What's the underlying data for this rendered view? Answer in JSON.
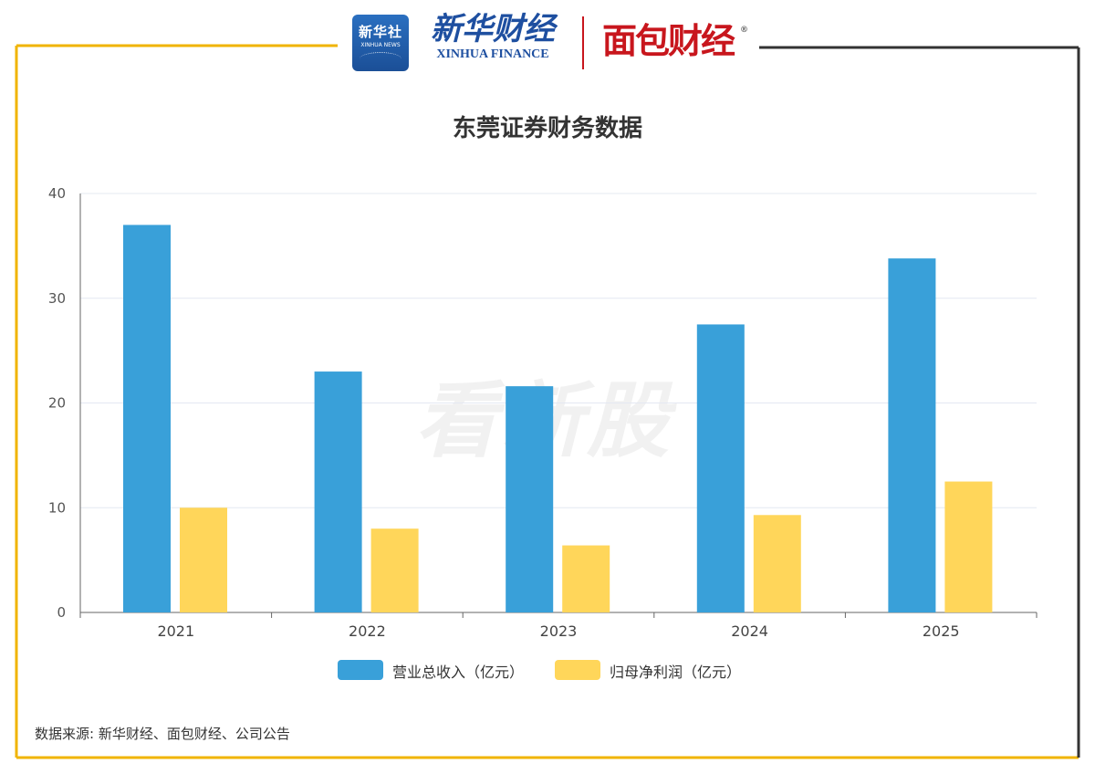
{
  "header": {
    "logo_xinhua_she_cn": "新华社",
    "logo_xinhua_she_en": "XINHUA NEWS",
    "logo_xinhua_finance_cn": "新华财经",
    "logo_xinhua_finance_en": "XINHUA FINANCE",
    "logo_mianbao": "面包财经",
    "registered_mark": "®"
  },
  "watermark": "看新股",
  "source": "数据来源: 新华财经、面包财经、公司公告",
  "colors": {
    "frame_gold": "#f0b400",
    "frame_dark": "#333333",
    "revenue": "#39a0d9",
    "profit": "#ffd65a",
    "grid": "#e4e8f2",
    "axis": "#666666"
  },
  "chart_data": {
    "type": "bar",
    "title": "东莞证券财务数据",
    "categories": [
      "2021",
      "2022",
      "2023",
      "2024",
      "2025"
    ],
    "series": [
      {
        "name": "营业总收入（亿元）",
        "values": [
          37.0,
          23.0,
          21.6,
          27.5,
          33.8
        ],
        "color": "#39a0d9"
      },
      {
        "name": "归母净利润（亿元）",
        "values": [
          10.0,
          8.0,
          6.4,
          9.3,
          12.5
        ],
        "color": "#ffd65a"
      }
    ],
    "yticks": [
      "0",
      "10",
      "20",
      "30",
      "40"
    ],
    "ylim": [
      0,
      40
    ],
    "xlabel": "",
    "ylabel": "",
    "grid": true,
    "legend": "bottom-center"
  }
}
